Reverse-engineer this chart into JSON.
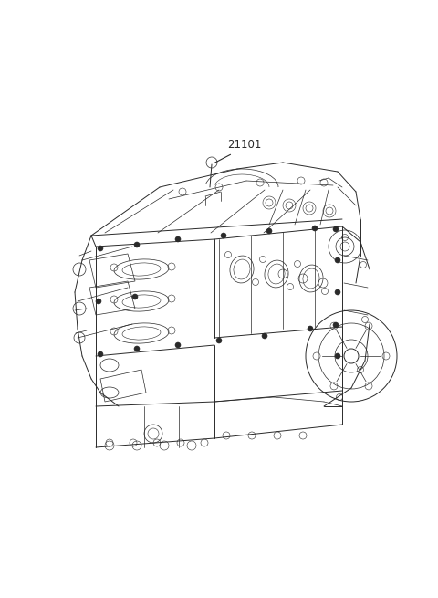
{
  "background_color": "#ffffff",
  "label_text": "21101",
  "label_fontsize": 8.5,
  "fig_width": 4.8,
  "fig_height": 6.55,
  "dpi": 100,
  "line_color": "#2a2a2a",
  "line_width": 0.7
}
